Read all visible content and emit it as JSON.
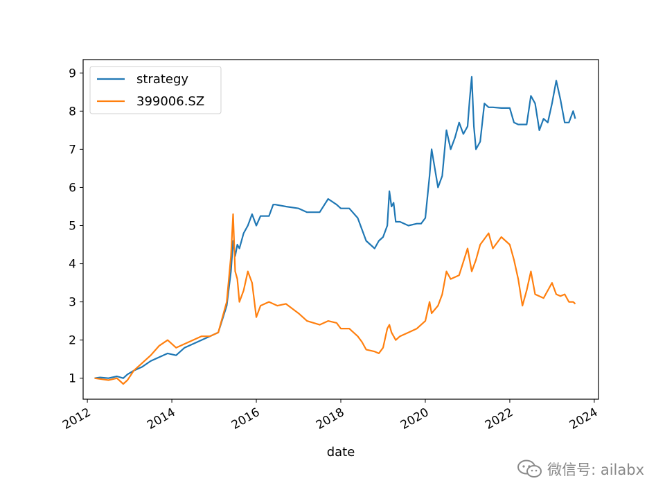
{
  "chart_data": {
    "type": "line",
    "xlabel": "date",
    "ylabel": "",
    "title": "",
    "xlim": [
      2011.9,
      2024.1
    ],
    "ylim": [
      0.45,
      9.35
    ],
    "x_ticks": [
      2012,
      2014,
      2016,
      2018,
      2020,
      2022,
      2024
    ],
    "y_ticks": [
      1,
      2,
      3,
      4,
      5,
      6,
      7,
      8,
      9
    ],
    "legend_position": "top-left",
    "grid": false,
    "series": [
      {
        "name": "strategy",
        "color": "#1f77b4",
        "x": [
          2012.17,
          2012.3,
          2012.5,
          2012.7,
          2012.85,
          2012.95,
          2013.1,
          2013.3,
          2013.5,
          2013.7,
          2013.9,
          2014.1,
          2014.3,
          2014.5,
          2014.7,
          2014.9,
          2015.1,
          2015.3,
          2015.4,
          2015.45,
          2015.5,
          2015.55,
          2015.6,
          2015.7,
          2015.8,
          2015.9,
          2016.0,
          2016.1,
          2016.3,
          2016.4,
          2016.45,
          2016.7,
          2017.0,
          2017.2,
          2017.5,
          2017.7,
          2017.9,
          2018.0,
          2018.2,
          2018.4,
          2018.5,
          2018.6,
          2018.8,
          2018.9,
          2019.0,
          2019.1,
          2019.15,
          2019.2,
          2019.25,
          2019.3,
          2019.4,
          2019.6,
          2019.8,
          2019.9,
          2020.0,
          2020.1,
          2020.15,
          2020.3,
          2020.4,
          2020.5,
          2020.6,
          2020.7,
          2020.8,
          2020.9,
          2021.0,
          2021.05,
          2021.1,
          2021.15,
          2021.2,
          2021.3,
          2021.4,
          2021.5,
          2021.6,
          2021.8,
          2022.0,
          2022.1,
          2022.2,
          2022.4,
          2022.5,
          2022.6,
          2022.7,
          2022.8,
          2022.9,
          2023.0,
          2023.1,
          2023.2,
          2023.3,
          2023.4,
          2023.5,
          2023.55
        ],
        "y": [
          1.0,
          1.02,
          1.0,
          1.05,
          1.0,
          1.1,
          1.2,
          1.3,
          1.45,
          1.55,
          1.65,
          1.6,
          1.8,
          1.9,
          2.0,
          2.1,
          2.2,
          2.9,
          3.8,
          4.6,
          4.2,
          4.5,
          4.4,
          4.8,
          5.0,
          5.3,
          5.0,
          5.25,
          5.25,
          5.55,
          5.55,
          5.5,
          5.45,
          5.35,
          5.35,
          5.7,
          5.55,
          5.45,
          5.45,
          5.2,
          4.9,
          4.6,
          4.4,
          4.6,
          4.7,
          5.0,
          5.9,
          5.5,
          5.6,
          5.1,
          5.1,
          5.0,
          5.05,
          5.05,
          5.2,
          6.3,
          7.0,
          6.0,
          6.3,
          7.5,
          7.0,
          7.3,
          7.7,
          7.4,
          7.6,
          8.3,
          8.9,
          7.6,
          7.0,
          7.2,
          8.2,
          8.1,
          8.1,
          8.08,
          8.08,
          7.7,
          7.65,
          7.65,
          8.4,
          8.2,
          7.5,
          7.8,
          7.7,
          8.2,
          8.8,
          8.3,
          7.7,
          7.7,
          8.0,
          7.8
        ]
      },
      {
        "name": "399006.SZ",
        "color": "#ff7f0e",
        "x": [
          2012.17,
          2012.3,
          2012.5,
          2012.7,
          2012.85,
          2012.95,
          2013.1,
          2013.3,
          2013.5,
          2013.7,
          2013.9,
          2014.1,
          2014.3,
          2014.5,
          2014.7,
          2014.9,
          2015.1,
          2015.3,
          2015.4,
          2015.45,
          2015.5,
          2015.55,
          2015.6,
          2015.7,
          2015.8,
          2015.9,
          2016.0,
          2016.1,
          2016.3,
          2016.5,
          2016.7,
          2017.0,
          2017.2,
          2017.5,
          2017.7,
          2017.9,
          2018.0,
          2018.2,
          2018.4,
          2018.5,
          2018.6,
          2018.8,
          2018.9,
          2019.0,
          2019.1,
          2019.15,
          2019.2,
          2019.3,
          2019.4,
          2019.6,
          2019.8,
          2020.0,
          2020.1,
          2020.15,
          2020.3,
          2020.4,
          2020.5,
          2020.6,
          2020.8,
          2021.0,
          2021.1,
          2021.2,
          2021.3,
          2021.5,
          2021.6,
          2021.8,
          2022.0,
          2022.1,
          2022.2,
          2022.3,
          2022.4,
          2022.5,
          2022.6,
          2022.8,
          2023.0,
          2023.1,
          2023.2,
          2023.3,
          2023.4,
          2023.5,
          2023.55
        ],
        "y": [
          1.0,
          0.98,
          0.95,
          1.0,
          0.85,
          0.95,
          1.2,
          1.4,
          1.6,
          1.85,
          2.0,
          1.8,
          1.9,
          2.0,
          2.1,
          2.1,
          2.2,
          3.0,
          4.2,
          5.3,
          3.8,
          3.6,
          3.0,
          3.3,
          3.8,
          3.5,
          2.6,
          2.9,
          3.0,
          2.9,
          2.95,
          2.7,
          2.5,
          2.4,
          2.5,
          2.45,
          2.3,
          2.3,
          2.1,
          1.95,
          1.75,
          1.7,
          1.65,
          1.8,
          2.3,
          2.4,
          2.2,
          2.0,
          2.1,
          2.2,
          2.3,
          2.5,
          3.0,
          2.7,
          2.9,
          3.2,
          3.8,
          3.6,
          3.7,
          4.4,
          3.8,
          4.1,
          4.5,
          4.8,
          4.4,
          4.7,
          4.5,
          4.1,
          3.6,
          2.9,
          3.3,
          3.8,
          3.2,
          3.1,
          3.5,
          3.2,
          3.15,
          3.2,
          3.0,
          3.0,
          2.95
        ]
      }
    ]
  },
  "watermark": {
    "text": "微信号: ailabx",
    "icon": "wechat-icon",
    "color": "#8a8a8a"
  }
}
